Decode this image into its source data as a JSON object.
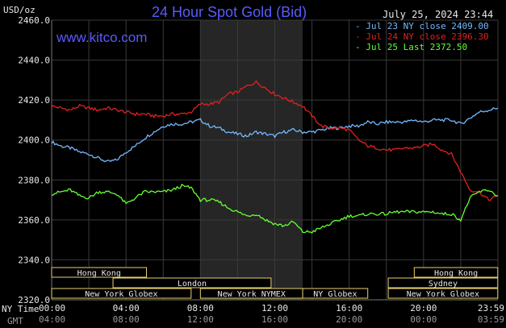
{
  "header": {
    "title": "24 Hour Spot Gold (Bid)",
    "datetime": "July 25, 2024 23:44",
    "source_url": "www.kitco.com",
    "unit_label": "USD/oz",
    "ny_time_label": "NY Time",
    "gmt_label": "GMT"
  },
  "colors": {
    "background": "#000000",
    "grid": "#3a3a3a",
    "shade": "#262626",
    "title": "#5a5aff",
    "jul23": "#74b9ff",
    "jul24": "#e02020",
    "jul25": "#66ff33",
    "session_box": "#e8d06a"
  },
  "chart_data": {
    "type": "line",
    "title": "24 Hour Spot Gold (Bid)",
    "ylabel": "USD/oz",
    "xlabel": "",
    "ylim": [
      2320,
      2460
    ],
    "xlim_hours_ny": [
      0,
      24
    ],
    "grid": true,
    "legend_position": "top-right",
    "y_ticks": [
      "2460.0",
      "2440.0",
      "2420.0",
      "2400.0",
      "2380.0",
      "2360.0",
      "2340.0",
      "2320.0"
    ],
    "x_ticks_ny": [
      "00:00",
      "04:00",
      "08:00",
      "12:00",
      "16:00",
      "20:00",
      "23:59"
    ],
    "x_ticks_gmt": [
      "04:00",
      "08:00",
      "12:00",
      "16:00",
      "20:00",
      "00:00",
      "03:59"
    ],
    "shaded_hours": [
      8.0,
      13.5
    ],
    "series": [
      {
        "name": "Jul 23 NY close 2409.00",
        "color": "#74b9ff",
        "x": [
          0,
          0.5,
          1,
          1.5,
          2,
          2.5,
          3,
          3.5,
          4,
          4.5,
          5,
          5.5,
          6,
          6.5,
          7,
          7.5,
          8,
          8.5,
          9,
          9.5,
          10,
          10.5,
          11,
          11.5,
          12,
          12.5,
          13,
          13.5,
          14,
          14.5,
          15,
          15.5,
          16,
          16.5,
          17,
          17.5,
          18,
          18.5,
          19,
          19.5,
          20,
          20.5,
          21,
          21.5,
          22,
          22.5,
          23,
          23.5,
          24
        ],
        "values": [
          2399,
          2397,
          2396,
          2394,
          2393,
          2391,
          2389,
          2390,
          2394,
          2397,
          2401,
          2404,
          2407,
          2408,
          2408,
          2409,
          2410,
          2407,
          2406,
          2404,
          2403,
          2402,
          2404,
          2403,
          2402,
          2404,
          2405,
          2404,
          2404,
          2405,
          2406,
          2406,
          2407,
          2407,
          2409,
          2408,
          2409,
          2409,
          2409,
          2410,
          2409,
          2410,
          2410,
          2410,
          2408,
          2411,
          2414,
          2415,
          2416
        ]
      },
      {
        "name": "Jul 24 NY close 2396.30",
        "color": "#e02020",
        "x": [
          0,
          0.5,
          1,
          1.5,
          2,
          2.5,
          3,
          3.5,
          4,
          4.5,
          5,
          5.5,
          6,
          6.5,
          7,
          7.5,
          8,
          8.5,
          9,
          9.5,
          10,
          10.5,
          11,
          11.5,
          12,
          12.5,
          13,
          13.5,
          14,
          14.5,
          15,
          15.5,
          16,
          16.5,
          17,
          17.5,
          18,
          18.5,
          19,
          19.5,
          20,
          20.5,
          21,
          21.5,
          22,
          22.5,
          23,
          23.5,
          24
        ],
        "values": [
          2417,
          2416,
          2415,
          2417,
          2416,
          2415,
          2416,
          2415,
          2414,
          2413,
          2413,
          2412,
          2412,
          2413,
          2413,
          2414,
          2418,
          2418,
          2419,
          2423,
          2424,
          2427,
          2429,
          2426,
          2423,
          2421,
          2419,
          2417,
          2412,
          2407,
          2406,
          2406,
          2405,
          2400,
          2397,
          2396,
          2395,
          2395,
          2396,
          2396,
          2397,
          2398,
          2395,
          2393,
          2384,
          2375,
          2374,
          2370,
          2372
        ]
      },
      {
        "name": "Jul 25 Last 2372.50",
        "color": "#66ff33",
        "x": [
          0,
          0.5,
          1,
          1.5,
          2,
          2.5,
          3,
          3.5,
          4,
          4.5,
          5,
          5.5,
          6,
          6.5,
          7,
          7.5,
          8,
          8.5,
          9,
          9.5,
          10,
          10.5,
          11,
          11.5,
          12,
          12.5,
          13,
          13.5,
          14,
          14.5,
          15,
          15.5,
          16,
          16.5,
          17,
          17.5,
          18,
          18.5,
          19,
          19.5,
          20,
          20.5,
          21,
          21.5,
          22,
          22.5,
          23,
          23.5,
          24
        ],
        "values": [
          2373,
          2374,
          2375,
          2372,
          2371,
          2374,
          2374,
          2373,
          2368,
          2371,
          2374,
          2374,
          2374,
          2375,
          2377,
          2376,
          2370,
          2370,
          2369,
          2366,
          2364,
          2362,
          2363,
          2360,
          2358,
          2357,
          2359,
          2354,
          2354,
          2356,
          2358,
          2360,
          2362,
          2362,
          2363,
          2363,
          2363,
          2364,
          2364,
          2364,
          2364,
          2364,
          2363,
          2363,
          2360,
          2371,
          2374,
          2375,
          2372
        ]
      }
    ]
  },
  "sessions": [
    {
      "name": "Hong Kong",
      "start": 0.0,
      "end": 5.1,
      "row": 0
    },
    {
      "name": "Hong Kong",
      "start": 19.5,
      "end": 23.99,
      "row": 0
    },
    {
      "name": "London",
      "start": 3.3,
      "end": 11.8,
      "row": 1
    },
    {
      "name": "Sydney",
      "start": 18.1,
      "end": 23.99,
      "row": 1
    },
    {
      "name": "New York Globex",
      "start": 0.0,
      "end": 7.5,
      "row": 2
    },
    {
      "name": "New York NYMEX",
      "start": 8.0,
      "end": 13.5,
      "row": 2
    },
    {
      "name": "NY Globex",
      "start": 13.5,
      "end": 17.0,
      "row": 2
    },
    {
      "name": "New York Globex",
      "start": 18.1,
      "end": 23.99,
      "row": 2
    }
  ]
}
